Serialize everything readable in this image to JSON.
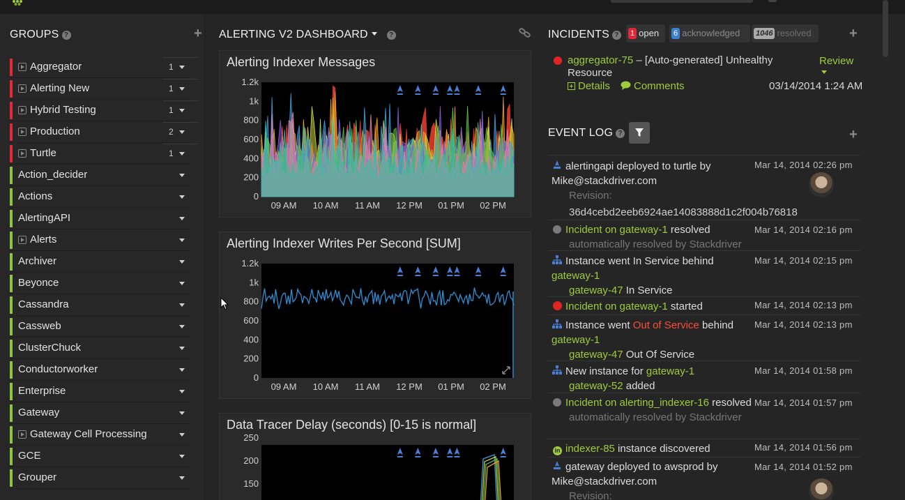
{
  "groups": {
    "title": "GROUPS",
    "help": "?",
    "items": [
      {
        "name": "Aggregator",
        "count": "1",
        "color": "#e0283a",
        "expandable": true
      },
      {
        "name": "Alerting New",
        "count": "1",
        "color": "#e0283a",
        "expandable": true
      },
      {
        "name": "Hybrid Testing",
        "count": "1",
        "color": "#e0283a",
        "expandable": true
      },
      {
        "name": "Production",
        "count": "2",
        "color": "#e0283a",
        "expandable": true
      },
      {
        "name": "Turtle",
        "count": "1",
        "color": "#e0283a",
        "expandable": true
      },
      {
        "name": "Action_decider",
        "count": "",
        "color": "#8cc63e",
        "expandable": false
      },
      {
        "name": "Actions",
        "count": "",
        "color": "#8cc63e",
        "expandable": false
      },
      {
        "name": "AlertingAPI",
        "count": "",
        "color": "#8cc63e",
        "expandable": false
      },
      {
        "name": "Alerts",
        "count": "",
        "color": "#8cc63e",
        "expandable": true
      },
      {
        "name": "Archiver",
        "count": "",
        "color": "#8cc63e",
        "expandable": false
      },
      {
        "name": "Beyonce",
        "count": "",
        "color": "#8cc63e",
        "expandable": false
      },
      {
        "name": "Cassandra",
        "count": "",
        "color": "#8cc63e",
        "expandable": false
      },
      {
        "name": "Cassweb",
        "count": "",
        "color": "#8cc63e",
        "expandable": false
      },
      {
        "name": "ClusterChuck",
        "count": "",
        "color": "#8cc63e",
        "expandable": false
      },
      {
        "name": "Conductorworker",
        "count": "",
        "color": "#8cc63e",
        "expandable": false
      },
      {
        "name": "Enterprise",
        "count": "",
        "color": "#8cc63e",
        "expandable": false
      },
      {
        "name": "Gateway",
        "count": "",
        "color": "#8cc63e",
        "expandable": false
      },
      {
        "name": "Gateway Cell Processing",
        "count": "",
        "color": "#8cc63e",
        "expandable": true
      },
      {
        "name": "GCE",
        "count": "",
        "color": "#8cc63e",
        "expandable": false
      },
      {
        "name": "Grouper",
        "count": "",
        "color": "#8cc63e",
        "expandable": false
      }
    ]
  },
  "dashboard": {
    "title": "ALERTING V2 DASHBOARD",
    "help": "?"
  },
  "chart_data": [
    {
      "type": "area",
      "title": "Alerting Indexer Messages",
      "xlabel": "",
      "ylabel": "",
      "x_ticks": [
        "09 AM",
        "10 AM",
        "11 AM",
        "12 PM",
        "01 PM",
        "02 PM"
      ],
      "y_ticks": [
        "0",
        "200",
        "400",
        "600",
        "800",
        "1k",
        "1.2k"
      ],
      "ylim": [
        0,
        1200
      ],
      "grid": false,
      "stacked": true,
      "series_colors": [
        "#e03a2e",
        "#f0a024",
        "#c8d43a",
        "#3aa0d8",
        "#8a5ad0",
        "#5ac04a",
        "#e87ab0",
        "#2fbfa8"
      ],
      "deploy_markers_x": [
        "11:50",
        "12:15",
        "12:40",
        "13:00",
        "13:10",
        "13:40",
        "14:15"
      ]
    },
    {
      "type": "line",
      "title": "Alerting Indexer Writes Per Second [SUM]",
      "xlabel": "",
      "ylabel": "",
      "x_ticks": [
        "09 AM",
        "10 AM",
        "11 AM",
        "12 PM",
        "01 PM",
        "02 PM"
      ],
      "y_ticks": [
        "0",
        "200",
        "400",
        "600",
        "800",
        "1k",
        "1.2k"
      ],
      "ylim": [
        0,
        1200
      ],
      "grid": false,
      "series_colors": [
        "#2f8fd6"
      ],
      "approx_level": 850,
      "deploy_markers_x": [
        "11:50",
        "12:15",
        "12:40",
        "13:00",
        "13:10",
        "13:40",
        "14:15"
      ]
    },
    {
      "type": "line",
      "title": "Data Tracer Delay (seconds) [0-15 is normal]",
      "xlabel": "",
      "ylabel": "",
      "y_ticks": [
        "150",
        "200",
        "250"
      ],
      "grid": false,
      "deploy_markers_x": [
        "11:50",
        "12:15",
        "12:40",
        "13:00",
        "13:10",
        "14:15"
      ]
    }
  ],
  "incidents": {
    "title": "INCIDENTS",
    "help": "?",
    "open_count": "1",
    "open_label": "open",
    "ack_count": "6",
    "ack_label": "acknowledged",
    "resolved_count": "1046",
    "resolved_label": "resolved",
    "item": {
      "link": "aggregator-75",
      "text": " – [Auto-generated] Unhealthy Resource",
      "review": "Review",
      "details": "Details",
      "comments": "Comments",
      "date": "03/14/2014 1:24 AM"
    }
  },
  "event_log": {
    "title": "EVENT LOG",
    "help": "?",
    "events": [
      {
        "time": "Mar 14, 2014 02:26 pm"
      },
      {
        "time": "Mar 14, 2014 02:16 pm"
      },
      {
        "time": "Mar 14, 2014 02:15 pm"
      },
      {
        "time": "Mar 14, 2014 02:13 pm"
      },
      {
        "time": "Mar 14, 2014 02:13 pm"
      },
      {
        "time": "Mar 14, 2014 01:58 pm"
      },
      {
        "time": "Mar 14, 2014 01:57 pm"
      },
      {
        "time": "Mar 14, 2014 01:56 pm"
      },
      {
        "time": "Mar 14, 2014 01:52 pm"
      }
    ],
    "e0": {
      "line1": "alertingapi deployed to turtle by Mike@stackdriver.com",
      "rev_label": "Revision:",
      "rev": "36d4cebd2eeb6924ae14083888d1c2f004b76818"
    },
    "e1": {
      "link": "Incident on gateway-1",
      "text": " resolved",
      "sub": "automatically resolved by Stackdriver"
    },
    "e2": {
      "text": "Instance went In Service behind ",
      "link": "gateway-1",
      "sublink": "gateway-47",
      "subtext": " In Service"
    },
    "e3": {
      "link": "Incident on gateway-1",
      "text": " started"
    },
    "e4": {
      "text": "Instance went ",
      "red": "Out of Service",
      "text2": " behind ",
      "link": "gateway-1",
      "sublink": "gateway-47",
      "subtext": " Out Of Service"
    },
    "e5": {
      "text": "New instance for ",
      "link": "gateway-1",
      "sublink": "gateway-52",
      "subtext": " added"
    },
    "e6": {
      "link": "Incident on alerting_indexer-16",
      "text": " resolved",
      "sub": "automatically resolved by Stackdriver"
    },
    "e7": {
      "link": "indexer-85",
      "text": " instance discovered"
    },
    "e8": {
      "line1": "gateway deployed to awsprod by Mike@stackdriver.com",
      "rev_label": "Revision:"
    }
  }
}
